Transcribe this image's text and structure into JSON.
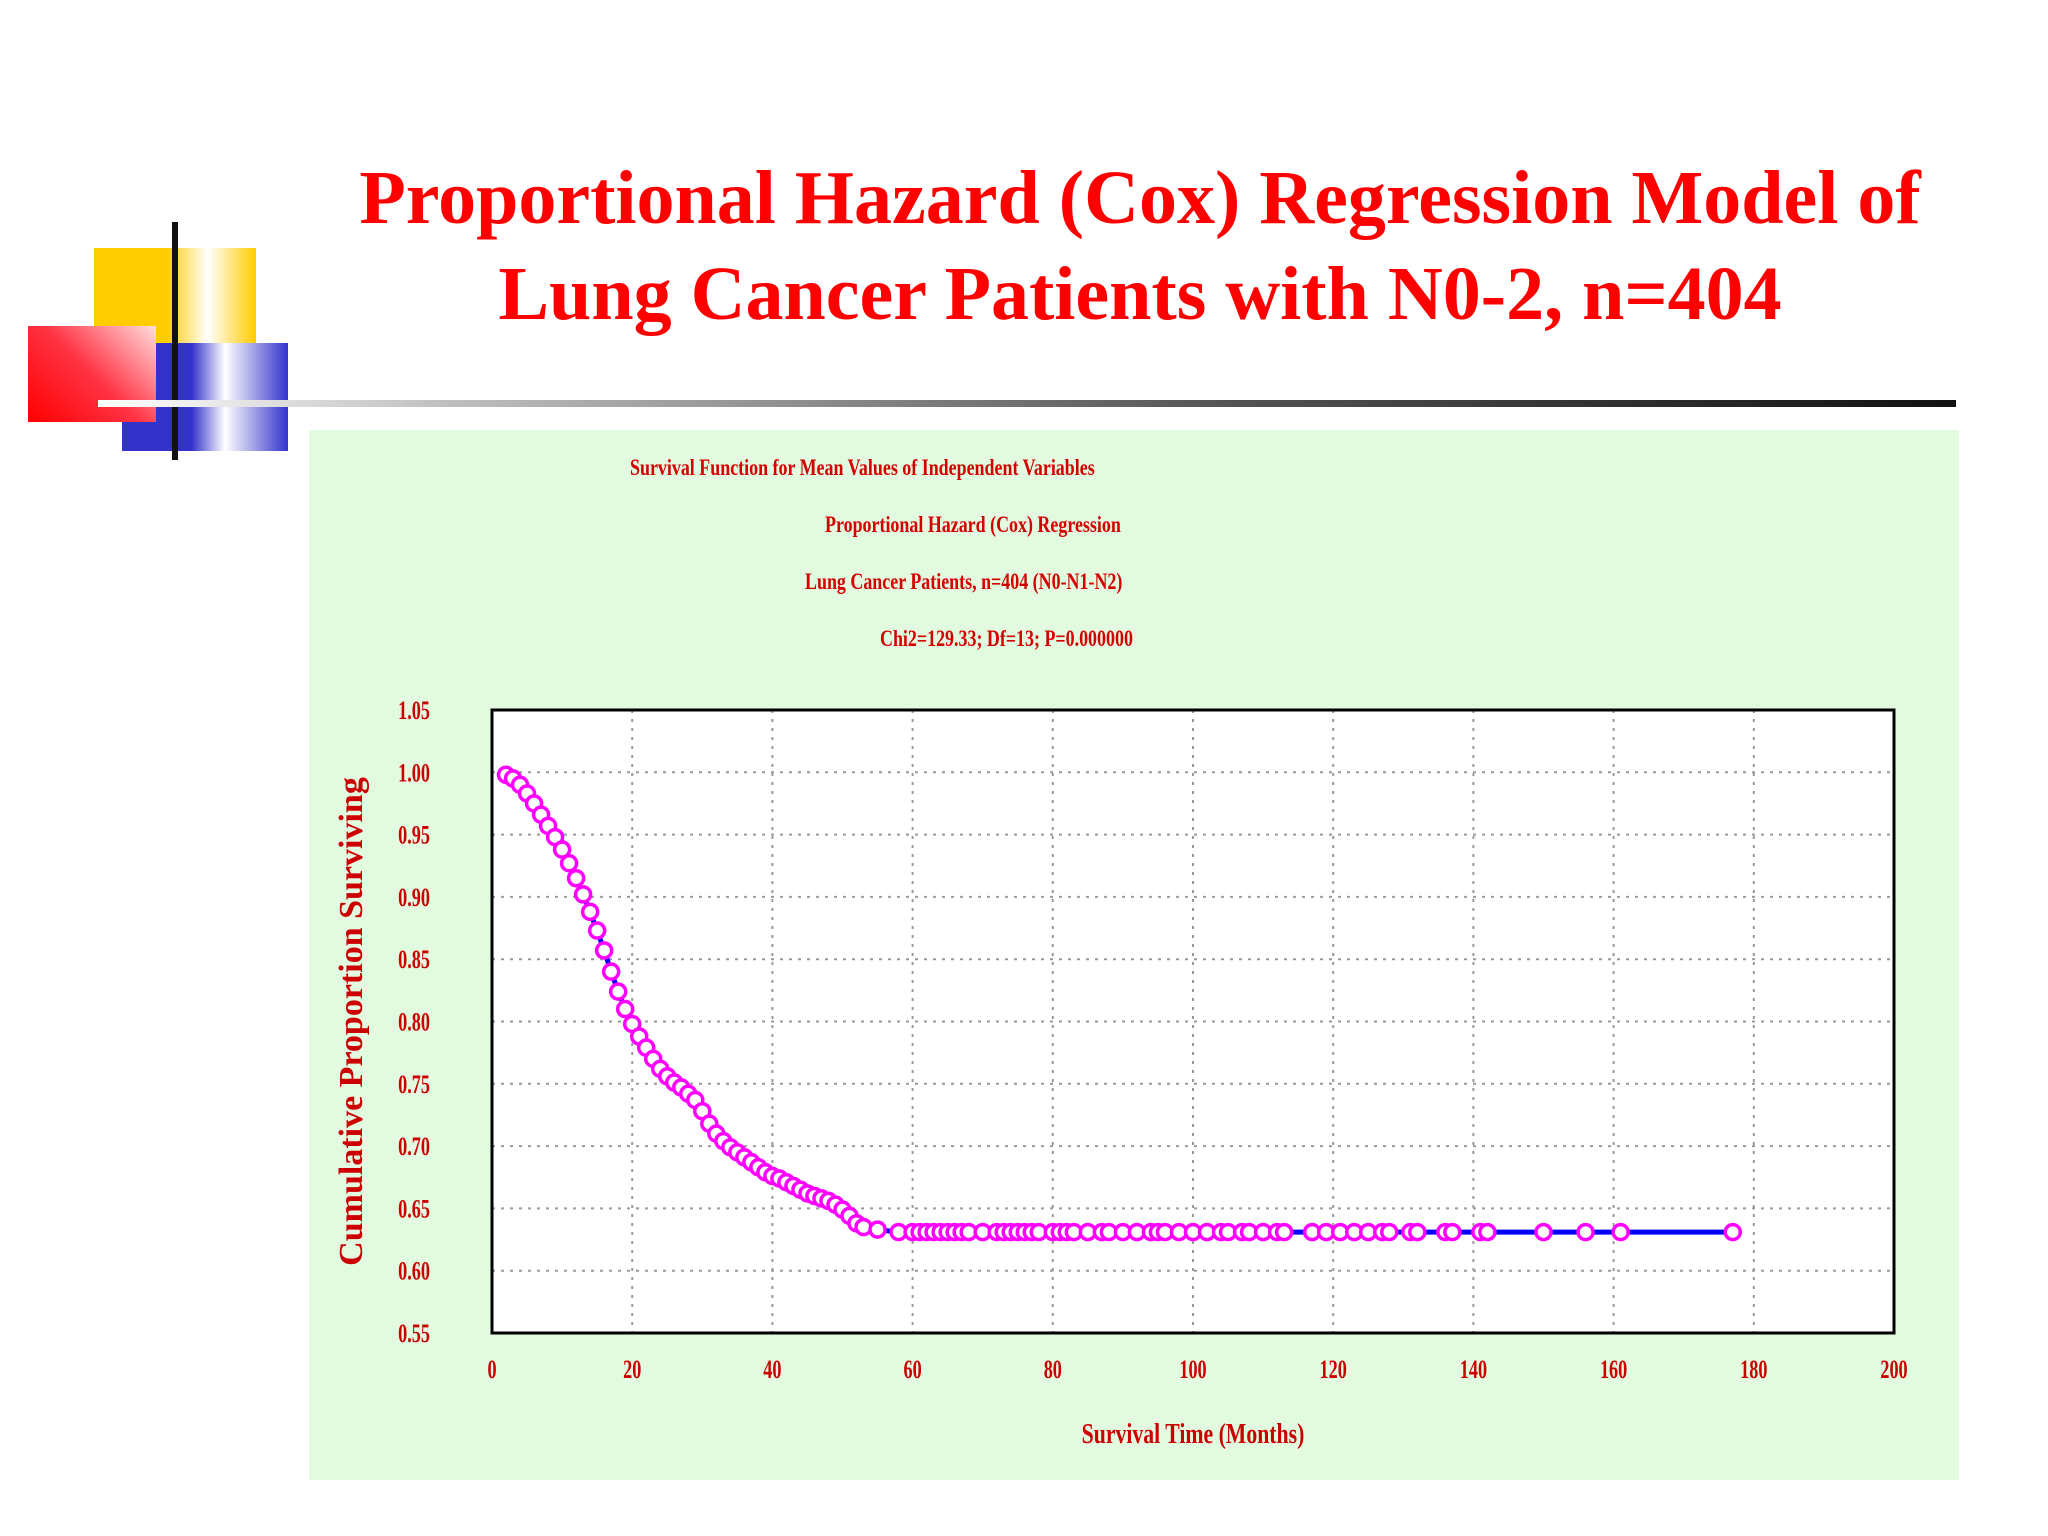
{
  "slide": {
    "title_line1": "Proportional Hazard (Cox) Regression Model of",
    "title_line2": "Lung Cancer Patients with N0-2, n=404"
  },
  "colors": {
    "title": "#ff0000",
    "axis_text": "#cc0000",
    "marker": "#ff00ff",
    "line": "#0000ff",
    "panel": "#e2fbe0"
  },
  "chart_data": {
    "type": "scatter",
    "subtitle_lines": [
      "Survival Function for Mean Values of Independent Variables",
      "Proportional Hazard (Cox) Regression",
      "Lung Cancer Patients, n=404 (N0-N1-N2)",
      "Chi2=129.33; Df=13; P=0.000000"
    ],
    "xlabel": "Survival Time (Months)",
    "ylabel": "Cumulative Proportion Surviving",
    "xlim": [
      0,
      200
    ],
    "ylim": [
      0.55,
      1.05
    ],
    "x_ticks": [
      "0",
      "20",
      "40",
      "60",
      "80",
      "100",
      "120",
      "140",
      "160",
      "180",
      "200"
    ],
    "y_ticks": [
      "0.55",
      "0.60",
      "0.65",
      "0.70",
      "0.75",
      "0.80",
      "0.85",
      "0.90",
      "0.95",
      "1.00",
      "1.05"
    ],
    "grid": true,
    "series": [
      {
        "x": [
          2,
          3,
          4,
          5,
          6,
          7,
          8,
          9,
          10,
          11,
          12,
          13,
          14,
          15,
          16,
          17,
          18,
          19,
          20,
          21,
          22,
          23,
          24,
          25,
          26,
          27,
          28,
          29,
          30,
          31,
          32,
          33,
          34,
          35,
          36,
          37,
          38,
          39,
          40,
          41,
          42,
          43,
          44,
          45,
          46,
          47,
          48,
          49,
          50,
          51,
          52,
          53,
          55,
          58,
          60,
          61,
          62,
          63,
          64,
          65,
          66,
          67,
          68,
          70,
          72,
          73,
          74,
          75,
          76,
          77,
          78,
          80,
          81,
          82,
          83,
          85,
          87,
          88,
          90,
          92,
          94,
          95,
          96,
          98,
          100,
          102,
          104,
          105,
          107,
          108,
          110,
          112,
          113,
          117,
          119,
          121,
          123,
          125,
          127,
          128,
          131,
          132,
          136,
          137,
          141,
          142,
          150,
          156,
          161,
          177
        ],
        "y": [
          0.998,
          0.995,
          0.99,
          0.983,
          0.975,
          0.966,
          0.957,
          0.948,
          0.938,
          0.927,
          0.915,
          0.902,
          0.888,
          0.873,
          0.857,
          0.84,
          0.824,
          0.81,
          0.798,
          0.788,
          0.779,
          0.77,
          0.762,
          0.756,
          0.751,
          0.747,
          0.742,
          0.737,
          0.728,
          0.718,
          0.71,
          0.704,
          0.699,
          0.695,
          0.691,
          0.687,
          0.683,
          0.679,
          0.676,
          0.674,
          0.671,
          0.668,
          0.665,
          0.662,
          0.66,
          0.658,
          0.656,
          0.653,
          0.649,
          0.644,
          0.638,
          0.635,
          0.633,
          0.631,
          0.631,
          0.631,
          0.631,
          0.631,
          0.631,
          0.631,
          0.631,
          0.631,
          0.631,
          0.631,
          0.631,
          0.631,
          0.631,
          0.631,
          0.631,
          0.631,
          0.631,
          0.631,
          0.631,
          0.631,
          0.631,
          0.631,
          0.631,
          0.631,
          0.631,
          0.631,
          0.631,
          0.631,
          0.631,
          0.631,
          0.631,
          0.631,
          0.631,
          0.631,
          0.631,
          0.631,
          0.631,
          0.631,
          0.631,
          0.631,
          0.631,
          0.631,
          0.631,
          0.631,
          0.631,
          0.631,
          0.631,
          0.631,
          0.631,
          0.631,
          0.631,
          0.631,
          0.631,
          0.631,
          0.631,
          0.631
        ]
      }
    ]
  }
}
